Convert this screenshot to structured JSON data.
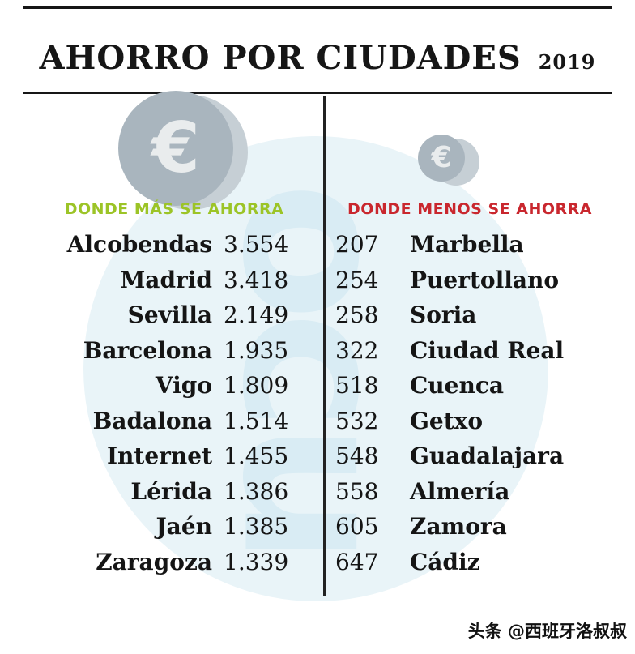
{
  "title": {
    "main": "AHORRO POR CIUDADES",
    "year": "2019"
  },
  "icons": {
    "euro": "€",
    "logo_text": "ocu"
  },
  "colors": {
    "heading_more": "#9cc427",
    "heading_less": "#c9272e",
    "coin": "#a9b5be",
    "coin_shadow": "#c6cfd5",
    "watermark": "#e9f4f8",
    "text": "#161616"
  },
  "left": {
    "heading": "DONDE MÁS SE AHORRA",
    "rows": [
      {
        "city": "Alcobendas",
        "value": "3.554"
      },
      {
        "city": "Madrid",
        "value": "3.418"
      },
      {
        "city": "Sevilla",
        "value": "2.149"
      },
      {
        "city": "Barcelona",
        "value": "1.935"
      },
      {
        "city": "Vigo",
        "value": "1.809"
      },
      {
        "city": "Badalona",
        "value": "1.514"
      },
      {
        "city": "Internet",
        "value": "1.455"
      },
      {
        "city": "Lérida",
        "value": "1.386"
      },
      {
        "city": "Jaén",
        "value": "1.385"
      },
      {
        "city": "Zaragoza",
        "value": "1.339"
      }
    ]
  },
  "right": {
    "heading": "DONDE MENOS SE AHORRA",
    "rows": [
      {
        "value": "207",
        "city": "Marbella"
      },
      {
        "value": "254",
        "city": "Puertollano"
      },
      {
        "value": "258",
        "city": "Soria"
      },
      {
        "value": "322",
        "city": "Ciudad Real"
      },
      {
        "value": "518",
        "city": "Cuenca"
      },
      {
        "value": "532",
        "city": "Getxo"
      },
      {
        "value": "548",
        "city": "Guadalajara"
      },
      {
        "value": "558",
        "city": "Almería"
      },
      {
        "value": "605",
        "city": "Zamora"
      },
      {
        "value": "647",
        "city": "Cádiz"
      }
    ]
  },
  "credit": "头条 @西班牙洛叔叔",
  "chart_data": {
    "type": "table",
    "title": "AHORRO POR CIUDADES 2019",
    "series": [
      {
        "name": "DONDE MÁS SE AHORRA",
        "categories": [
          "Alcobendas",
          "Madrid",
          "Sevilla",
          "Barcelona",
          "Vigo",
          "Badalona",
          "Internet",
          "Lérida",
          "Jaén",
          "Zaragoza"
        ],
        "values": [
          3554,
          3418,
          2149,
          1935,
          1809,
          1514,
          1455,
          1386,
          1385,
          1339
        ]
      },
      {
        "name": "DONDE MENOS SE AHORRA",
        "categories": [
          "Marbella",
          "Puertollano",
          "Soria",
          "Ciudad Real",
          "Cuenca",
          "Getxo",
          "Guadalajara",
          "Almería",
          "Zamora",
          "Cádiz"
        ],
        "values": [
          207,
          254,
          258,
          322,
          518,
          532,
          548,
          558,
          605,
          647
        ]
      }
    ]
  }
}
